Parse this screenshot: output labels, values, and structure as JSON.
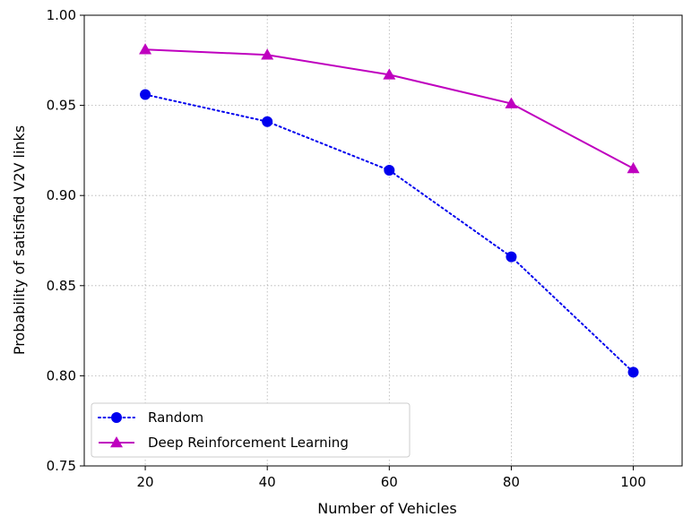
{
  "chart_data": {
    "type": "line",
    "title": "",
    "xlabel": "Number of Vehicles",
    "ylabel": "Probability of satisfied V2V links",
    "x": [
      20,
      40,
      60,
      80,
      100
    ],
    "xlim": [
      10,
      108
    ],
    "ylim": [
      0.75,
      1.0
    ],
    "xticks": [
      20,
      40,
      60,
      80,
      100
    ],
    "yticks": [
      0.75,
      0.8,
      0.85,
      0.9,
      0.95,
      1.0
    ],
    "ytick_labels": [
      "0.75",
      "0.80",
      "0.85",
      "0.90",
      "0.95",
      "1.00"
    ],
    "xtick_labels": [
      "20",
      "40",
      "60",
      "80",
      "100"
    ],
    "grid": true,
    "legend_position": "lower-left",
    "series": [
      {
        "name": "Random",
        "values": [
          0.956,
          0.941,
          0.914,
          0.866,
          0.802
        ],
        "color": "#0000ee",
        "line_style": "dotted",
        "marker": "circle"
      },
      {
        "name": "Deep Reinforcement Learning",
        "values": [
          0.981,
          0.978,
          0.967,
          0.951,
          0.915
        ],
        "color": "#bf00bf",
        "line_style": "solid",
        "marker": "triangle"
      }
    ]
  }
}
